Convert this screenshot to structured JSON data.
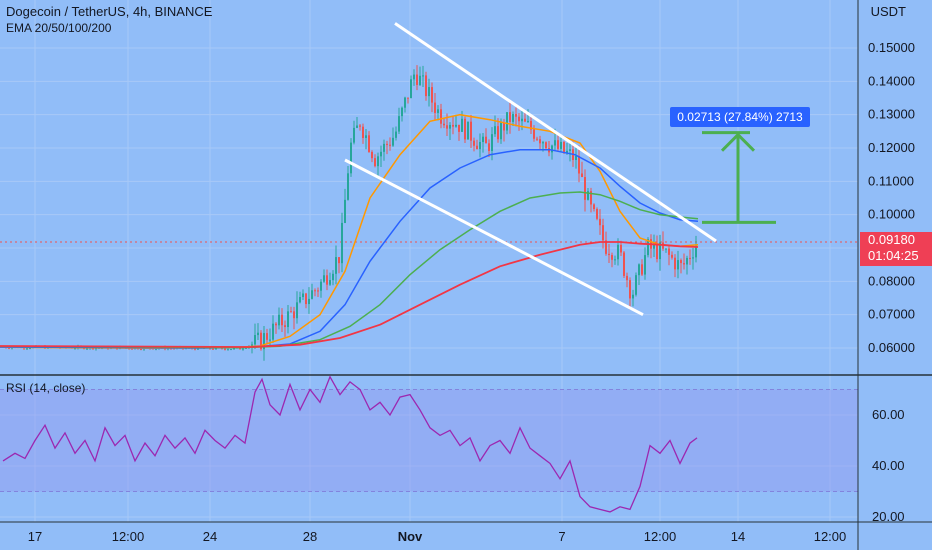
{
  "header": {
    "symbol": "Dogecoin / TetherUS, 4h, BINANCE",
    "indicator": "EMA 20/50/100/200",
    "currency": "USDT"
  },
  "rsi_panel": {
    "label": "RSI (14, close)"
  },
  "last_price": {
    "value": "0.09180",
    "countdown": "01:04:25"
  },
  "measure": {
    "label": "0.02713 (27.84%) 2713"
  },
  "colors": {
    "background": "#91bdf8",
    "up": "#26a69a",
    "down": "#ef5350",
    "ema20": "#ff9800",
    "ema50": "#2962ff",
    "ema100": "#4caf50",
    "ema200": "#f23645",
    "rsi": "#9c27b0",
    "rsi_band": "#9598f0",
    "trendline": "#ffffff",
    "target": "#4caf50",
    "price_tag": "#ef3f55",
    "measure_badge": "#2962ff"
  },
  "chart_data": [
    {
      "type": "candlestick",
      "title": "Dogecoin / TetherUS, 4h, BINANCE",
      "ylabel": "USDT",
      "ylim": [
        0.055,
        0.16
      ],
      "y_ticks": [
        "0.06000",
        "0.07000",
        "0.08000",
        "0.09000",
        "0.10000",
        "0.11000",
        "0.12000",
        "0.13000",
        "0.14000",
        "0.15000"
      ],
      "x_ticks": [
        "17",
        "12:00",
        "24",
        "28",
        "Nov",
        "7",
        "12:00",
        "14",
        "12:00"
      ],
      "grid": true,
      "series": [
        {
          "name": "EMA 20",
          "x": [
            0,
            150,
            230,
            260,
            290,
            320,
            345,
            370,
            400,
            430,
            460,
            490,
            520,
            550,
            580,
            600,
            620,
            640,
            660,
            680,
            698
          ],
          "values": [
            0.0602,
            0.0599,
            0.0601,
            0.0606,
            0.0635,
            0.07,
            0.083,
            0.105,
            0.118,
            0.128,
            0.13,
            0.1285,
            0.1265,
            0.125,
            0.1215,
            0.113,
            0.101,
            0.093,
            0.091,
            0.0905,
            0.091
          ]
        },
        {
          "name": "EMA 50",
          "x": [
            0,
            200,
            250,
            290,
            320,
            345,
            370,
            400,
            430,
            460,
            490,
            520,
            550,
            575,
            600,
            620,
            640,
            660,
            680,
            698
          ],
          "values": [
            0.0603,
            0.06,
            0.0602,
            0.0612,
            0.065,
            0.073,
            0.086,
            0.098,
            0.108,
            0.114,
            0.118,
            0.1195,
            0.1195,
            0.118,
            0.114,
            0.1085,
            0.1035,
            0.1005,
            0.0985,
            0.098
          ]
        },
        {
          "name": "EMA 100",
          "x": [
            0,
            240,
            280,
            320,
            350,
            380,
            410,
            440,
            470,
            500,
            530,
            560,
            580,
            600,
            620,
            640,
            660,
            680,
            698
          ],
          "values": [
            0.0605,
            0.0601,
            0.0605,
            0.0625,
            0.0665,
            0.073,
            0.082,
            0.0895,
            0.0955,
            0.101,
            0.105,
            0.1065,
            0.1068,
            0.106,
            0.104,
            0.1015,
            0.1,
            0.0993,
            0.0988
          ]
        },
        {
          "name": "EMA 200",
          "x": [
            0,
            250,
            300,
            340,
            380,
            420,
            460,
            500,
            540,
            580,
            600,
            620,
            640,
            660,
            680,
            698
          ],
          "values": [
            0.0606,
            0.0603,
            0.061,
            0.063,
            0.067,
            0.073,
            0.079,
            0.0845,
            0.088,
            0.091,
            0.0918,
            0.0918,
            0.0913,
            0.091,
            0.0905,
            0.0903
          ]
        }
      ],
      "candles": {
        "x_start": 3,
        "x_end": 697,
        "y_end": 0.0918,
        "seed": 7,
        "anchors": [
          {
            "x": 0,
            "y": 0.0603
          },
          {
            "x": 240,
            "y": 0.0598
          },
          {
            "x": 260,
            "y": 0.062
          },
          {
            "x": 290,
            "y": 0.07
          },
          {
            "x": 320,
            "y": 0.079
          },
          {
            "x": 340,
            "y": 0.088
          },
          {
            "x": 350,
            "y": 0.12
          },
          {
            "x": 360,
            "y": 0.128
          },
          {
            "x": 375,
            "y": 0.117
          },
          {
            "x": 395,
            "y": 0.124
          },
          {
            "x": 415,
            "y": 0.143
          },
          {
            "x": 440,
            "y": 0.13
          },
          {
            "x": 460,
            "y": 0.127
          },
          {
            "x": 485,
            "y": 0.12
          },
          {
            "x": 510,
            "y": 0.129
          },
          {
            "x": 530,
            "y": 0.126
          },
          {
            "x": 550,
            "y": 0.121
          },
          {
            "x": 575,
            "y": 0.117
          },
          {
            "x": 590,
            "y": 0.102
          },
          {
            "x": 605,
            "y": 0.091
          },
          {
            "x": 620,
            "y": 0.088
          },
          {
            "x": 632,
            "y": 0.076
          },
          {
            "x": 648,
            "y": 0.09
          },
          {
            "x": 665,
            "y": 0.0885
          },
          {
            "x": 682,
            "y": 0.084
          },
          {
            "x": 697,
            "y": 0.0918
          }
        ]
      },
      "drawings": {
        "upper_trendline": {
          "from": {
            "x": 395,
            "y": 0.1574
          },
          "to": {
            "x": 716,
            "y": 0.0921
          }
        },
        "lower_trendline": {
          "from": {
            "x": 345,
            "y": 0.1164
          },
          "to": {
            "x": 643,
            "y": 0.07
          }
        },
        "target_projection": {
          "x": 738,
          "from": 0.0977,
          "to": 0.1246,
          "left": 702,
          "right": 776
        }
      }
    },
    {
      "type": "line",
      "title": "RSI (14, close)",
      "ylim": [
        18,
        73
      ],
      "y_ticks": [
        "20.00",
        "40.00",
        "60.00"
      ],
      "band": [
        30,
        70
      ],
      "series": [
        {
          "name": "RSI (14, close)",
          "x": [
            3,
            15,
            25,
            35,
            45,
            55,
            65,
            75,
            85,
            95,
            105,
            115,
            125,
            135,
            145,
            155,
            165,
            175,
            185,
            195,
            205,
            215,
            225,
            235,
            245,
            255,
            262,
            270,
            280,
            290,
            300,
            310,
            320,
            330,
            340,
            350,
            360,
            370,
            380,
            390,
            400,
            410,
            420,
            430,
            440,
            450,
            460,
            470,
            480,
            490,
            500,
            510,
            520,
            530,
            540,
            550,
            560,
            570,
            580,
            590,
            600,
            610,
            620,
            630,
            640,
            650,
            660,
            670,
            680,
            690,
            697
          ],
          "values": [
            42,
            45,
            43,
            50,
            56,
            47,
            53,
            45,
            50,
            42,
            55,
            48,
            52,
            42,
            49,
            44,
            52,
            47,
            51,
            45,
            54,
            50,
            47,
            52,
            49,
            69,
            74,
            64,
            60,
            72,
            62,
            70,
            65,
            75,
            68,
            73,
            70,
            62,
            65,
            60,
            67,
            68,
            62,
            55,
            52,
            54,
            48,
            51,
            42,
            48,
            50,
            45,
            55,
            47,
            44,
            41,
            35,
            42,
            28,
            24,
            23,
            22,
            24,
            23,
            32,
            48,
            45,
            50,
            41,
            49,
            51
          ]
        }
      ]
    }
  ]
}
